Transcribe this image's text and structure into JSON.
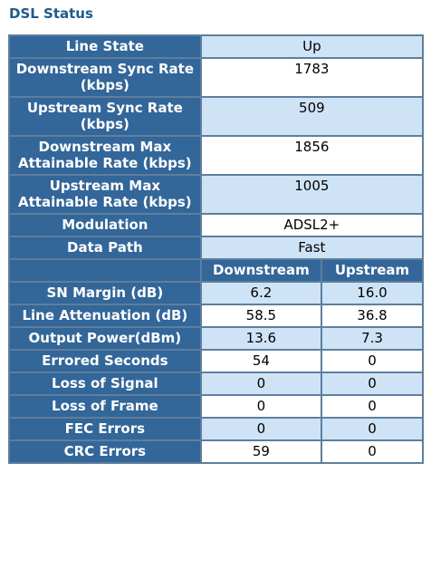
{
  "page": {
    "title": "DSL Status"
  },
  "summary_rows": [
    {
      "label": "Line State",
      "value": "Up"
    },
    {
      "label": "Downstream Sync Rate (kbps)",
      "value": "1783"
    },
    {
      "label": "Upstream Sync Rate (kbps)",
      "value": "509"
    },
    {
      "label": "Downstream Max Attainable Rate (kbps)",
      "value": "1856"
    },
    {
      "label": "Upstream Max Attainable Rate (kbps)",
      "value": "1005"
    },
    {
      "label": "Modulation",
      "value": "ADSL2+"
    },
    {
      "label": "Data Path",
      "value": "Fast"
    }
  ],
  "columns": {
    "downstream": "Downstream",
    "upstream": "Upstream"
  },
  "stat_rows": [
    {
      "label": "SN Margin (dB)",
      "down": "6.2",
      "up": "16.0"
    },
    {
      "label": "Line Attenuation (dB)",
      "down": "58.5",
      "up": "36.8"
    },
    {
      "label": "Output Power(dBm)",
      "down": "13.6",
      "up": "7.3"
    },
    {
      "label": "Errored Seconds",
      "down": "54",
      "up": "0"
    },
    {
      "label": "Loss of Signal",
      "down": "0",
      "up": "0"
    },
    {
      "label": "Loss of Frame",
      "down": "0",
      "up": "0"
    },
    {
      "label": "FEC Errors",
      "down": "0",
      "up": "0"
    },
    {
      "label": "CRC Errors",
      "down": "59",
      "up": "0"
    }
  ],
  "colors": {
    "title": "#1f5a8c",
    "label_bg": "#336699",
    "alt_row_bg": "#cfe3f7",
    "border": "#5e7f9d"
  }
}
